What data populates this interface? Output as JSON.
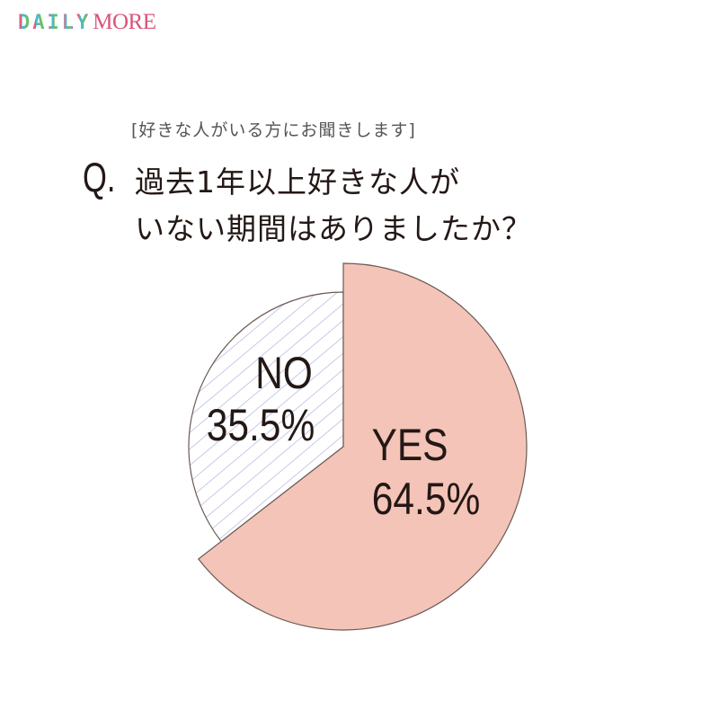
{
  "logo": {
    "part1": "DAILY",
    "part2": "MORE"
  },
  "subtitle": "[好きな人がいる方にお聞きします]",
  "question": {
    "prefix": "Q.",
    "line1": "過去1年以上好きな人が",
    "line2": "いない期間はありましたか？"
  },
  "chart_data": {
    "type": "pie",
    "title": "過去1年以上好きな人がいない期間はありましたか？",
    "start_angle": "12 o'clock, clockwise",
    "slices": [
      {
        "name": "YES",
        "value": 64.5,
        "label": "64.5%",
        "color": "#f4c4b8",
        "fill": "solid",
        "emphasized": true
      },
      {
        "name": "NO",
        "value": 35.5,
        "label": "35.5%",
        "color": "#ffffff",
        "fill": "hatched",
        "hatch_color": "#b9bde0"
      }
    ]
  }
}
